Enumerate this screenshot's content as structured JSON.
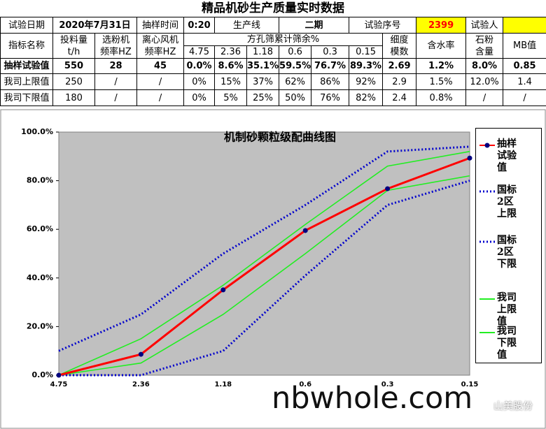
{
  "title": "精品机砂生产质量实时数据",
  "table": {
    "info": [
      "试验日期",
      "2020年7月31日",
      "抽样时间",
      "0:20",
      "生产线",
      "二期",
      "试验序号",
      "2399",
      "试验人"
    ],
    "header": [
      "指标名称",
      "投料量\nt/h",
      "选粉机\n频率HZ",
      "离心风机\n频率HZ",
      "方孔筛累计筛余%",
      "细度\n模数",
      "含水率",
      "石粉\n含量",
      "MB值"
    ],
    "sieves": [
      "4.75",
      "2.36",
      "1.18",
      "0.6",
      "0.3",
      "0.15"
    ],
    "rows": [
      [
        "抽样试验值",
        "550",
        "28",
        "45",
        "0.0%",
        "8.6%",
        "35.1%",
        "59.5%",
        "76.7%",
        "89.3%",
        "2.69",
        "1.2%",
        "8.0%",
        "0.85"
      ],
      [
        "我司上限值",
        "250",
        "/",
        "/",
        "0%",
        "15%",
        "37%",
        "62%",
        "86%",
        "92%",
        "2.9",
        "1.5%",
        "12.0%",
        "1.4"
      ],
      [
        "我司下限值",
        "180",
        "/",
        "/",
        "0%",
        "5%",
        "25%",
        "50%",
        "76%",
        "82%",
        "2.4",
        "0.8%",
        "/",
        "/"
      ]
    ]
  },
  "chart_data": {
    "type": "line",
    "title": "机制砂颗粒级配曲线图",
    "categories": [
      "4.75",
      "2.36",
      "1.18",
      "0.6",
      "0.3",
      "0.15"
    ],
    "ylim": [
      0,
      100
    ],
    "yticks": [
      {
        "value": 0,
        "label": "0.0%"
      },
      {
        "value": 20,
        "label": "20.0%"
      },
      {
        "value": 40,
        "label": "40.0%"
      },
      {
        "value": 60,
        "label": "60.0%"
      },
      {
        "value": 80,
        "label": "80.0%"
      },
      {
        "value": 100,
        "label": "100.0%"
      }
    ],
    "legend": "right",
    "series": [
      {
        "name": "抽样试验值",
        "color": "#ff0000",
        "style": "solid",
        "marker": "#000080",
        "values": [
          0,
          8.6,
          35.1,
          59.5,
          76.7,
          89.3
        ]
      },
      {
        "name": "国标2区上限",
        "color": "#0000cc",
        "style": "dotted",
        "values": [
          10,
          25,
          50,
          70,
          92,
          94
        ]
      },
      {
        "name": "国标2区下限",
        "color": "#0000cc",
        "style": "dotted",
        "values": [
          0,
          0,
          10,
          41,
          70,
          80
        ]
      },
      {
        "name": "我司上限值",
        "color": "#22ee22",
        "style": "solid",
        "values": [
          0,
          15,
          37,
          62,
          86,
          92
        ]
      },
      {
        "name": "我司下限值",
        "color": "#22ee22",
        "style": "solid",
        "values": [
          0,
          5,
          25,
          50,
          76,
          82
        ]
      }
    ]
  },
  "watermark": {
    "site": "nbwhole.com",
    "brand": "山美股份"
  }
}
